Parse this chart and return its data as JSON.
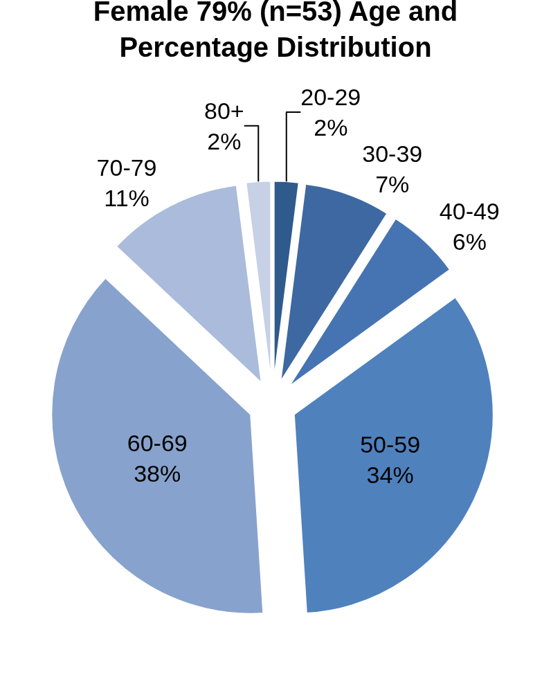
{
  "chart_data": {
    "type": "pie",
    "title": "Female 79% (n=53) Age and Percentage Distribution",
    "categories": [
      "20-29",
      "30-39",
      "40-49",
      "50-59",
      "60-69",
      "70-79",
      "80+"
    ],
    "values": [
      2,
      7,
      6,
      34,
      38,
      11,
      2
    ],
    "value_labels": [
      "2%",
      "7%",
      "6%",
      "34%",
      "38%",
      "11%",
      "2%"
    ],
    "colors": [
      "#2f5a8c",
      "#3d68a2",
      "#4674b3",
      "#4f81bd",
      "#87a2cc",
      "#aabbdb",
      "#c6d1e6"
    ],
    "legend": false
  }
}
